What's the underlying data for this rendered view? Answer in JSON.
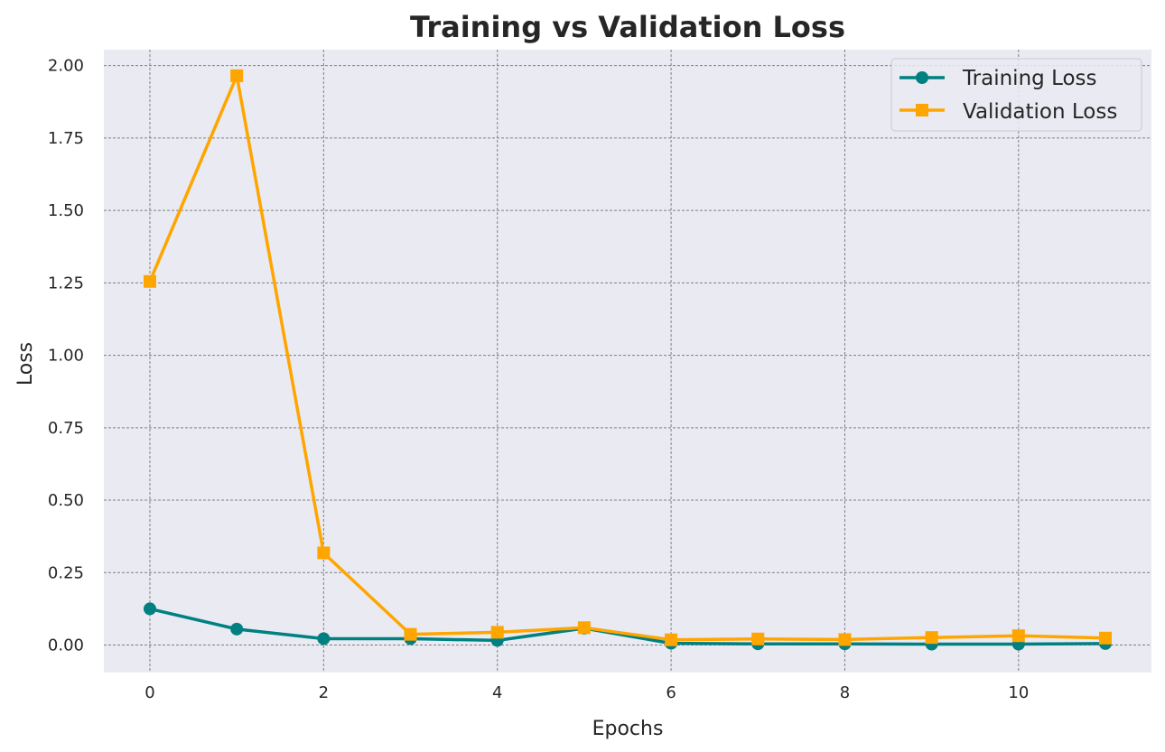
{
  "chart_data": {
    "type": "line",
    "title": "Training vs Validation Loss",
    "xlabel": "Epochs",
    "ylabel": "Loss",
    "x": [
      0,
      1,
      2,
      3,
      4,
      5,
      6,
      7,
      8,
      9,
      10,
      11
    ],
    "xlim": [
      -0.53,
      11.53
    ],
    "ylim": [
      -0.095,
      2.055
    ],
    "xticks": [
      0,
      2,
      4,
      6,
      8,
      10
    ],
    "xtick_labels": [
      "0",
      "2",
      "4",
      "6",
      "8",
      "10"
    ],
    "yticks": [
      0,
      0.25,
      0.5,
      0.75,
      1.0,
      1.25,
      1.5,
      1.75,
      2.0
    ],
    "ytick_labels": [
      "0.00",
      "0.25",
      "0.50",
      "0.75",
      "1.00",
      "1.25",
      "1.50",
      "1.75",
      "2.00"
    ],
    "grid": true,
    "legend_position": "top-right",
    "background": "#eaeaf2",
    "series": [
      {
        "name": "Training Loss",
        "color": "#008080",
        "marker": "circle",
        "values": [
          0.125,
          0.055,
          0.022,
          0.022,
          0.016,
          0.058,
          0.006,
          0.004,
          0.004,
          0.003,
          0.003,
          0.005
        ]
      },
      {
        "name": "Validation Loss",
        "color": "#ffa500",
        "marker": "square",
        "values": [
          1.255,
          1.965,
          0.318,
          0.037,
          0.044,
          0.06,
          0.018,
          0.021,
          0.019,
          0.026,
          0.032,
          0.024
        ]
      }
    ]
  }
}
